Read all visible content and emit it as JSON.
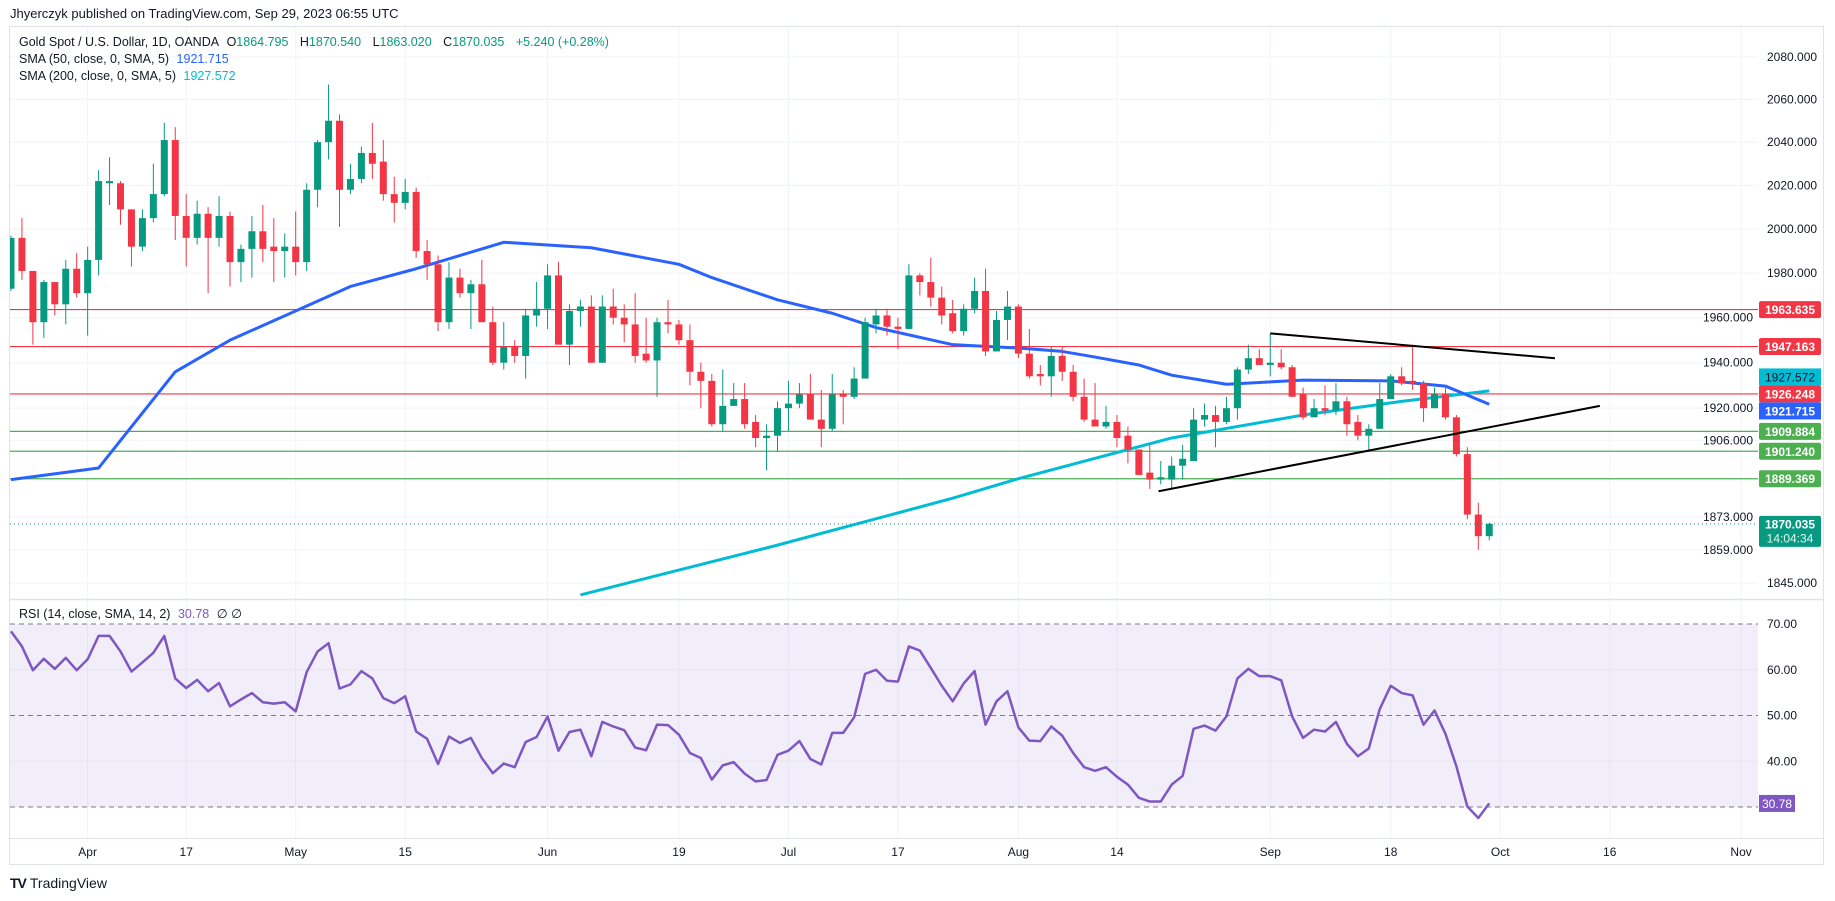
{
  "publisher": "Jhyerczyk published on TradingView.com, Sep 29, 2023 06:55 UTC",
  "legend": {
    "symbol": "Gold Spot / U.S. Dollar, 1D, OANDA",
    "o_label": "O",
    "o": "1864.795",
    "h_label": "H",
    "h": "1870.540",
    "l_label": "L",
    "l": "1863.020",
    "c_label": "C",
    "c": "1870.035",
    "change": "+5.240 (+0.28%)",
    "sma50_label": "SMA (50, close, 0, SMA, 5)",
    "sma50_value": "1921.715",
    "sma200_label": "SMA (200, close, 0, SMA, 5)",
    "sma200_value": "1927.572",
    "rsi_label": "RSI (14, close, SMA, 14, 2)",
    "rsi_value": "30.78",
    "rsi_extra": "∅ ∅"
  },
  "logo": {
    "icon": "tradingview-logo-icon",
    "mark": "TV",
    "text": "TradingView"
  },
  "colors": {
    "up": "#089981",
    "down": "#F23645",
    "sma50": "#2962FF",
    "sma200": "#00BCD4",
    "rsi": "#7E57C2",
    "support": "#4CAF50",
    "resistance": "#F23645",
    "trend": "#000000"
  },
  "chart_data": {
    "type": "candlestick",
    "price_scale": "log",
    "ylim": [
      1845,
      2080
    ],
    "y_ticks": [
      "2080.000",
      "2060.000",
      "2040.000",
      "2020.000",
      "2000.000",
      "1980.000",
      "1960.000",
      "1940.000",
      "1920.000",
      "1906.000",
      "1873.000",
      "1859.000",
      "1845.000"
    ],
    "x_ticks": [
      {
        "label": "Apr",
        "bar": 7
      },
      {
        "label": "17",
        "bar": 16
      },
      {
        "label": "May",
        "bar": 26
      },
      {
        "label": "15",
        "bar": 36
      },
      {
        "label": "Jun",
        "bar": 49
      },
      {
        "label": "19",
        "bar": 61
      },
      {
        "label": "Jul",
        "bar": 71
      },
      {
        "label": "17",
        "bar": 81
      },
      {
        "label": "Aug",
        "bar": 92
      },
      {
        "label": "14",
        "bar": 101
      },
      {
        "label": "Sep",
        "bar": 115
      },
      {
        "label": "18",
        "bar": 126
      },
      {
        "label": "Oct",
        "bar": 136
      },
      {
        "label": "16",
        "bar": 146
      },
      {
        "label": "Nov",
        "bar": 158
      }
    ],
    "ohlc": [
      [
        1973,
        1997,
        1972,
        1996
      ],
      [
        1996,
        2005,
        1977,
        1981
      ],
      [
        1981,
        1981,
        1948,
        1958
      ],
      [
        1958,
        1977,
        1951,
        1976
      ],
      [
        1976,
        1976,
        1961,
        1966
      ],
      [
        1966,
        1986,
        1957,
        1982
      ],
      [
        1982,
        1989,
        1969,
        1971
      ],
      [
        1971,
        1992,
        1952,
        1986
      ],
      [
        1986,
        2027,
        1979,
        2022
      ],
      [
        2021,
        2033,
        2011,
        2022
      ],
      [
        2021,
        2022,
        2002,
        2009
      ],
      [
        2009,
        2009,
        1983,
        1992
      ],
      [
        1992,
        2009,
        1990,
        2005
      ],
      [
        2005,
        2030,
        2003,
        2016
      ],
      [
        2016,
        2049,
        2015,
        2041
      ],
      [
        2041,
        2047,
        1995,
        2006
      ],
      [
        2006,
        2016,
        1983,
        1996
      ],
      [
        1996,
        2013,
        1993,
        2007
      ],
      [
        2007,
        2010,
        1971,
        1996
      ],
      [
        1996,
        2015,
        1992,
        2006
      ],
      [
        2006,
        2008,
        1974,
        1985
      ],
      [
        1985,
        1993,
        1976,
        1991
      ],
      [
        1991,
        2006,
        1978,
        1999
      ],
      [
        1999,
        2011,
        1985,
        1991
      ],
      [
        1992,
        2005,
        1976,
        1990
      ],
      [
        1990,
        1998,
        1978,
        1992
      ],
      [
        1992,
        2008,
        1979,
        1985
      ],
      [
        1985,
        2021,
        1981,
        2018
      ],
      [
        2018,
        2041,
        2010,
        2040
      ],
      [
        2040,
        2067,
        2032,
        2050
      ],
      [
        2050,
        2053,
        2001,
        2018
      ],
      [
        2018,
        2030,
        2016,
        2023
      ],
      [
        2023,
        2038,
        2021,
        2035
      ],
      [
        2035,
        2049,
        2023,
        2030
      ],
      [
        2031,
        2041,
        2013,
        2016
      ],
      [
        2016,
        2024,
        2003,
        2012
      ],
      [
        2012,
        2023,
        2009,
        2017
      ],
      [
        2017,
        2019,
        1987,
        1990
      ],
      [
        1990,
        1995,
        1977,
        1984
      ],
      [
        1984,
        1988,
        1954,
        1958
      ],
      [
        1958,
        1985,
        1955,
        1978
      ],
      [
        1978,
        1982,
        1969,
        1971
      ],
      [
        1971,
        1977,
        1955,
        1975
      ],
      [
        1975,
        1986,
        1958,
        1958
      ],
      [
        1958,
        1965,
        1939,
        1940
      ],
      [
        1940,
        1958,
        1937,
        1947
      ],
      [
        1947,
        1950,
        1940,
        1943
      ],
      [
        1943,
        1964,
        1933,
        1961
      ],
      [
        1961,
        1976,
        1956,
        1964
      ],
      [
        1964,
        1984,
        1955,
        1979
      ],
      [
        1979,
        1985,
        1948,
        1948
      ],
      [
        1948,
        1966,
        1939,
        1963
      ],
      [
        1963,
        1968,
        1956,
        1965
      ],
      [
        1965,
        1970,
        1940,
        1940
      ],
      [
        1940,
        1970,
        1940,
        1965
      ],
      [
        1965,
        1973,
        1957,
        1960
      ],
      [
        1960,
        1966,
        1949,
        1957
      ],
      [
        1957,
        1971,
        1940,
        1943
      ],
      [
        1944,
        1960,
        1940,
        1941
      ],
      [
        1941,
        1960,
        1925,
        1958
      ],
      [
        1958,
        1968,
        1953,
        1957
      ],
      [
        1957,
        1959,
        1948,
        1950
      ],
      [
        1950,
        1957,
        1930,
        1936
      ],
      [
        1936,
        1940,
        1920,
        1932
      ],
      [
        1932,
        1935,
        1912,
        1913
      ],
      [
        1913,
        1937,
        1910,
        1921
      ],
      [
        1921,
        1931,
        1921,
        1924
      ],
      [
        1924,
        1931,
        1911,
        1913
      ],
      [
        1914,
        1917,
        1903,
        1907
      ],
      [
        1907,
        1913,
        1893,
        1908
      ],
      [
        1908,
        1923,
        1901,
        1920
      ],
      [
        1920,
        1932,
        1910,
        1922
      ],
      [
        1922,
        1931,
        1920,
        1926
      ],
      [
        1926,
        1935,
        1915,
        1915
      ],
      [
        1915,
        1928,
        1903,
        1911
      ],
      [
        1911,
        1935,
        1910,
        1926
      ],
      [
        1926,
        1928,
        1913,
        1925
      ],
      [
        1925,
        1938,
        1924,
        1933
      ],
      [
        1933,
        1960,
        1933,
        1958
      ],
      [
        1957,
        1964,
        1953,
        1961
      ],
      [
        1961,
        1964,
        1952,
        1956
      ],
      [
        1956,
        1960,
        1946,
        1955
      ],
      [
        1955,
        1984,
        1955,
        1979
      ],
      [
        1979,
        1980,
        1970,
        1976
      ],
      [
        1976,
        1987,
        1965,
        1969
      ],
      [
        1969,
        1974,
        1957,
        1961
      ],
      [
        1962,
        1968,
        1953,
        1954
      ],
      [
        1954,
        1966,
        1952,
        1964
      ],
      [
        1964,
        1978,
        1962,
        1972
      ],
      [
        1972,
        1982,
        1943,
        1945
      ],
      [
        1945,
        1963,
        1945,
        1959
      ],
      [
        1959,
        1972,
        1950,
        1965
      ],
      [
        1965,
        1966,
        1942,
        1944
      ],
      [
        1944,
        1955,
        1933,
        1934
      ],
      [
        1935,
        1939,
        1930,
        1934
      ],
      [
        1934,
        1947,
        1925,
        1943
      ],
      [
        1943,
        1947,
        1932,
        1936
      ],
      [
        1936,
        1939,
        1923,
        1925
      ],
      [
        1925,
        1933,
        1914,
        1915
      ],
      [
        1915,
        1931,
        1912,
        1912
      ],
      [
        1912,
        1921,
        1911,
        1914
      ],
      [
        1914,
        1917,
        1903,
        1907
      ],
      [
        1908,
        1912,
        1896,
        1902
      ],
      [
        1902,
        1902,
        1891,
        1891
      ],
      [
        1892,
        1904,
        1885,
        1889
      ],
      [
        1889,
        1897,
        1887,
        1890
      ],
      [
        1889,
        1899,
        1885,
        1895
      ],
      [
        1895,
        1904,
        1889,
        1898
      ],
      [
        1897,
        1920,
        1897,
        1915
      ],
      [
        1915,
        1922,
        1912,
        1917
      ],
      [
        1917,
        1921,
        1903,
        1914
      ],
      [
        1914,
        1925,
        1913,
        1920
      ],
      [
        1920,
        1938,
        1915,
        1937
      ],
      [
        1937,
        1948,
        1935,
        1942
      ],
      [
        1942,
        1946,
        1939,
        1939
      ],
      [
        1939,
        1953,
        1934,
        1940
      ],
      [
        1940,
        1946,
        1937,
        1938
      ],
      [
        1938,
        1939,
        1925,
        1925
      ],
      [
        1926,
        1929,
        1915,
        1916
      ],
      [
        1916,
        1924,
        1916,
        1920
      ],
      [
        1920,
        1930,
        1917,
        1919
      ],
      [
        1919,
        1931,
        1917,
        1923
      ],
      [
        1923,
        1925,
        1908,
        1913
      ],
      [
        1914,
        1917,
        1906,
        1908
      ],
      [
        1908,
        1913,
        1901,
        1911
      ],
      [
        1911,
        1931,
        1911,
        1924
      ],
      [
        1924,
        1935,
        1924,
        1934
      ],
      [
        1934,
        1938,
        1930,
        1931
      ],
      [
        1932,
        1948,
        1928,
        1931
      ],
      [
        1931,
        1932,
        1914,
        1920
      ],
      [
        1920,
        1929,
        1920,
        1926
      ],
      [
        1926,
        1930,
        1915,
        1916
      ],
      [
        1916,
        1917,
        1899,
        1900
      ],
      [
        1900,
        1903,
        1872,
        1874
      ],
      [
        1874,
        1879,
        1859,
        1864.8
      ],
      [
        1864.795,
        1870.54,
        1863.02,
        1870.035
      ]
    ],
    "sma50": [
      [
        0,
        1889
      ],
      [
        8,
        1894
      ],
      [
        15,
        1936
      ],
      [
        20,
        1950
      ],
      [
        31,
        1974
      ],
      [
        37,
        1982
      ],
      [
        45,
        1994
      ],
      [
        53,
        1991.5
      ],
      [
        61,
        1984
      ],
      [
        64,
        1978
      ],
      [
        70,
        1968
      ],
      [
        75,
        1962
      ],
      [
        79,
        1955.6
      ],
      [
        86,
        1948
      ],
      [
        92,
        1946.5
      ],
      [
        96,
        1945
      ],
      [
        99,
        1942.5
      ],
      [
        103,
        1939
      ],
      [
        106,
        1934.5
      ],
      [
        111,
        1930.5
      ],
      [
        118,
        1932.3
      ],
      [
        126,
        1932
      ],
      [
        131,
        1929.7
      ],
      [
        135,
        1921.715
      ]
    ],
    "sma200": [
      [
        52,
        1840
      ],
      [
        70,
        1861
      ],
      [
        86,
        1881
      ],
      [
        92,
        1889.4
      ],
      [
        106,
        1907
      ],
      [
        118,
        1917
      ],
      [
        127,
        1923
      ],
      [
        135,
        1927.572
      ]
    ],
    "levels": [
      {
        "value": "1963.635",
        "kind": "resistance"
      },
      {
        "value": "1947.163",
        "kind": "resistance"
      },
      {
        "value": "1926.248",
        "kind": "resistance"
      },
      {
        "value": "1909.884",
        "kind": "support"
      },
      {
        "value": "1901.240",
        "kind": "support"
      },
      {
        "value": "1889.369",
        "kind": "support"
      }
    ],
    "trendlines": [
      {
        "name": "upper-trendline",
        "from": [
          115,
          1953
        ],
        "to": [
          141,
          1942
        ]
      },
      {
        "name": "lower-trendline",
        "from": [
          104.8,
          1884
        ],
        "to": [
          145.1,
          1921
        ]
      }
    ],
    "current_price": {
      "value": "1870.035",
      "countdown": "14:04:34"
    },
    "sma_labels": {
      "sma200": "1927.572",
      "sma50": "1921.715"
    },
    "rsi": {
      "ylim": [
        30,
        70
      ],
      "ticks": [
        "70.00",
        "60.00",
        "50.00",
        "40.00"
      ],
      "bands": [
        70,
        50,
        30
      ],
      "current": "30.78",
      "values": [
        68.4,
        65.1,
        59.9,
        62.4,
        60.2,
        62.6,
        59.9,
        62.3,
        67.4,
        67.4,
        64.0,
        59.6,
        61.6,
        63.7,
        67.4,
        58.1,
        56.0,
        57.8,
        55.3,
        57.1,
        52.0,
        53.5,
        54.9,
        52.9,
        52.6,
        52.9,
        50.9,
        59.5,
        64.0,
        65.8,
        55.9,
        56.8,
        59.7,
        58.1,
        53.8,
        52.7,
        54.2,
        46.5,
        44.9,
        39.4,
        45.4,
        44.0,
        45.1,
        40.7,
        37.4,
        39.5,
        38.7,
        44.2,
        45.3,
        49.8,
        42.3,
        46.4,
        46.9,
        41.1,
        48.6,
        47.6,
        46.8,
        43.0,
        42.4,
        48.0,
        47.9,
        45.8,
        41.8,
        40.7,
        36.0,
        39.1,
        39.8,
        37.3,
        35.6,
        35.9,
        41.4,
        42.3,
        44.4,
        40.5,
        39.3,
        46.2,
        46.2,
        49.6,
        59.1,
        60.0,
        57.6,
        57.4,
        65.1,
        64.2,
        60.4,
        56.5,
        53.1,
        57.0,
        59.7,
        48.0,
        53.1,
        55.3,
        47.4,
        44.5,
        44.4,
        47.6,
        45.6,
        41.8,
        38.7,
        37.9,
        38.7,
        36.6,
        34.9,
        32.0,
        31.2,
        31.2,
        34.9,
        36.8,
        47.1,
        47.8,
        46.7,
        49.8,
        58.1,
        60.2,
        58.6,
        58.6,
        57.7,
        49.8,
        45.1,
        46.9,
        46.5,
        48.6,
        43.8,
        41.1,
        42.8,
        51.4,
        56.5,
        54.9,
        54.4,
        48.0,
        51.1,
        46.0,
        38.9,
        30.1,
        27.6,
        30.78
      ]
    }
  }
}
